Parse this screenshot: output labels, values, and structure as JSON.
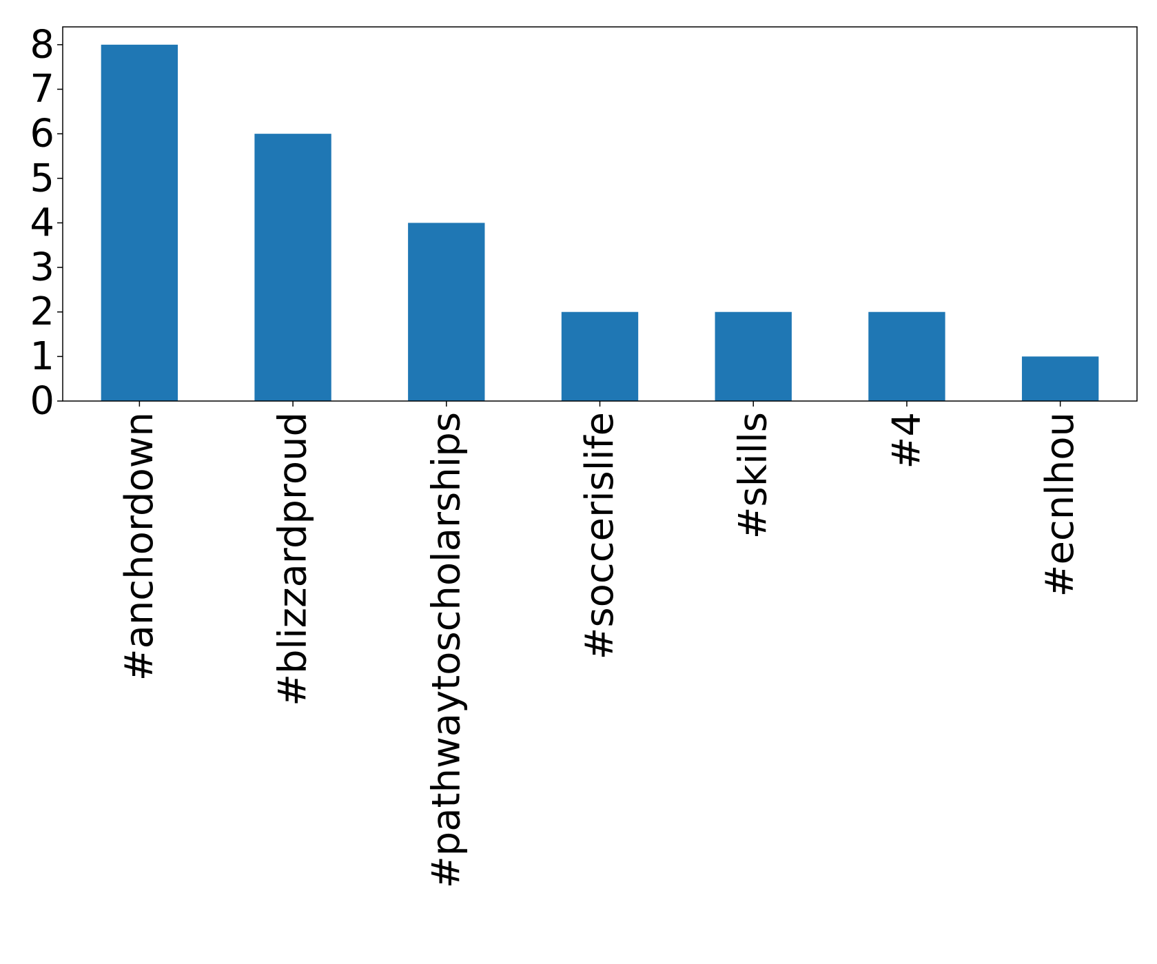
{
  "chart_data": {
    "type": "bar",
    "title": "",
    "xlabel": "",
    "ylabel": "",
    "categories": [
      "#anchordown",
      "#blizzardproud",
      "#pathwaytoscholarships",
      "#soccerislife",
      "#skills",
      "#4",
      "#ecnlhou"
    ],
    "values": [
      8,
      6,
      4,
      2,
      2,
      2,
      1
    ],
    "ylim": [
      0,
      8.4
    ],
    "yticks": [
      "0",
      "1",
      "2",
      "3",
      "4",
      "5",
      "6",
      "7",
      "8"
    ],
    "grid": false,
    "legend": "none",
    "bar_color": "#1f77b4"
  }
}
